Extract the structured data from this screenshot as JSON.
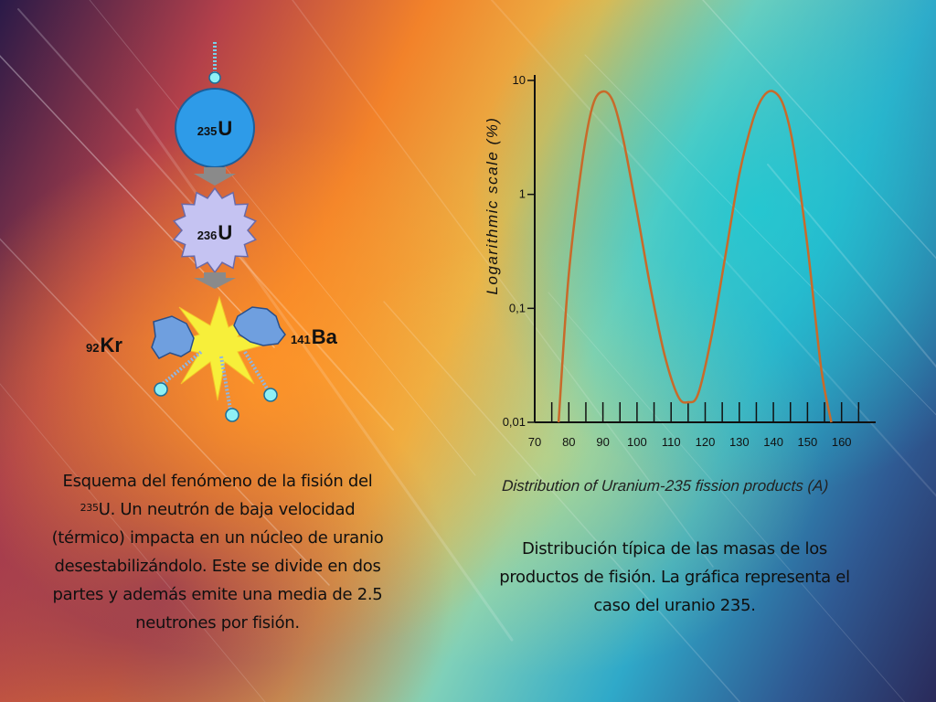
{
  "diagram": {
    "u235": {
      "mass": "235",
      "symbol": "U"
    },
    "u236": {
      "mass": "236",
      "symbol": "U"
    },
    "kr": {
      "mass": "92",
      "symbol": "Kr"
    },
    "ba": {
      "mass": "141",
      "symbol": "Ba"
    }
  },
  "captions": {
    "left": {
      "part1": "Esquema del fenómeno de la fisión del ",
      "sup": "235",
      "part2": "U. Un neutrón de baja velocidad (térmico) impacta en un núcleo de uranio desestabilizándolo. Este se divide en dos partes y además emite una media de 2.5 neutrones por fisión."
    },
    "right": "Distribución típica de las masas de los productos de fisión. La gráfica representa el caso del uranio 235."
  },
  "colors": {
    "nucleus_blue": "#2e9be8",
    "nucleus_lavender": "#c5c3f2",
    "fragment_blue": "#6f9fdf",
    "burst_yellow": "#f7ef3a",
    "neutron_cyan": "#8ff0f5",
    "arrow_gray": "#8a8a8a",
    "curve": "#c86a2a"
  },
  "chart_data": {
    "type": "line",
    "ylabel": "Logarithmic scale (%)",
    "xlabel": "Distribution of Uranium-235 fission products (A)",
    "y_scale": "log",
    "ylim": [
      0.01,
      10
    ],
    "y_ticks": [
      0.01,
      0.1,
      1,
      10
    ],
    "y_tick_labels": [
      "0,01",
      "0,1",
      "1",
      "10"
    ],
    "xlim": [
      70,
      170
    ],
    "x_ticks": [
      70,
      80,
      90,
      100,
      110,
      120,
      130,
      140,
      150,
      160
    ],
    "x_tick_labels": [
      "70",
      "80",
      "90",
      "100",
      "110",
      "120",
      "130",
      "140",
      "150",
      "160"
    ],
    "series": [
      {
        "x": [
          77,
          80,
          84,
          87,
          90,
          93,
          96,
          100,
          104,
          108,
          112,
          115,
          118,
          122,
          126,
          130,
          134,
          137,
          140,
          143,
          146,
          150,
          154,
          157
        ],
        "y": [
          0.01,
          0.2,
          2.0,
          6.0,
          8.0,
          6.5,
          3.0,
          0.7,
          0.15,
          0.04,
          0.017,
          0.015,
          0.018,
          0.06,
          0.3,
          1.5,
          4.5,
          7.2,
          8.0,
          6.0,
          2.5,
          0.35,
          0.03,
          0.01
        ]
      }
    ]
  }
}
